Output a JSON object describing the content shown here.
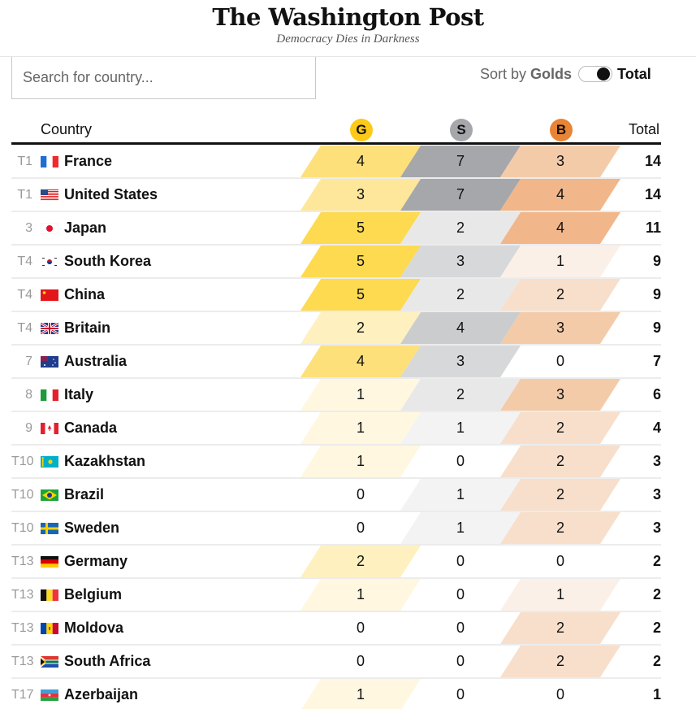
{
  "masthead": {
    "logo": "The Washington Post",
    "tagline": "Democracy Dies in Darkness"
  },
  "search": {
    "placeholder": "Search for country...",
    "value": ""
  },
  "sort": {
    "label": "Sort by",
    "option_left": "Golds",
    "option_right": "Total",
    "selected": "Total"
  },
  "table": {
    "headers": {
      "country": "Country",
      "gold": "G",
      "silver": "S",
      "bronze": "B",
      "total": "Total"
    },
    "colors": {
      "gold": "#fec919",
      "silver": "#a6a7aa",
      "bronze": "#e88434"
    },
    "rows": [
      {
        "rank": "T1",
        "country": "France",
        "flag": "fr",
        "gold": "4",
        "silver": "7",
        "bronze": "3",
        "total": "14"
      },
      {
        "rank": "T1",
        "country": "United States",
        "flag": "us",
        "gold": "3",
        "silver": "7",
        "bronze": "4",
        "total": "14"
      },
      {
        "rank": "3",
        "country": "Japan",
        "flag": "jp",
        "gold": "5",
        "silver": "2",
        "bronze": "4",
        "total": "11"
      },
      {
        "rank": "T4",
        "country": "South Korea",
        "flag": "kr",
        "gold": "5",
        "silver": "3",
        "bronze": "1",
        "total": "9"
      },
      {
        "rank": "T4",
        "country": "China",
        "flag": "cn",
        "gold": "5",
        "silver": "2",
        "bronze": "2",
        "total": "9"
      },
      {
        "rank": "T4",
        "country": "Britain",
        "flag": "gb",
        "gold": "2",
        "silver": "4",
        "bronze": "3",
        "total": "9"
      },
      {
        "rank": "7",
        "country": "Australia",
        "flag": "au",
        "gold": "4",
        "silver": "3",
        "bronze": "0",
        "total": "7"
      },
      {
        "rank": "8",
        "country": "Italy",
        "flag": "it",
        "gold": "1",
        "silver": "2",
        "bronze": "3",
        "total": "6"
      },
      {
        "rank": "9",
        "country": "Canada",
        "flag": "ca",
        "gold": "1",
        "silver": "1",
        "bronze": "2",
        "total": "4"
      },
      {
        "rank": "T10",
        "country": "Kazakhstan",
        "flag": "kz",
        "gold": "1",
        "silver": "0",
        "bronze": "2",
        "total": "3"
      },
      {
        "rank": "T10",
        "country": "Brazil",
        "flag": "br",
        "gold": "0",
        "silver": "1",
        "bronze": "2",
        "total": "3"
      },
      {
        "rank": "T10",
        "country": "Sweden",
        "flag": "se",
        "gold": "0",
        "silver": "1",
        "bronze": "2",
        "total": "3"
      },
      {
        "rank": "T13",
        "country": "Germany",
        "flag": "de",
        "gold": "2",
        "silver": "0",
        "bronze": "0",
        "total": "2"
      },
      {
        "rank": "T13",
        "country": "Belgium",
        "flag": "be",
        "gold": "1",
        "silver": "0",
        "bronze": "1",
        "total": "2"
      },
      {
        "rank": "T13",
        "country": "Moldova",
        "flag": "md",
        "gold": "0",
        "silver": "0",
        "bronze": "2",
        "total": "2"
      },
      {
        "rank": "T13",
        "country": "South Africa",
        "flag": "za",
        "gold": "0",
        "silver": "0",
        "bronze": "2",
        "total": "2"
      },
      {
        "rank": "T17",
        "country": "Azerbaijan",
        "flag": "az",
        "gold": "1",
        "silver": "0",
        "bronze": "0",
        "total": "1"
      }
    ]
  }
}
